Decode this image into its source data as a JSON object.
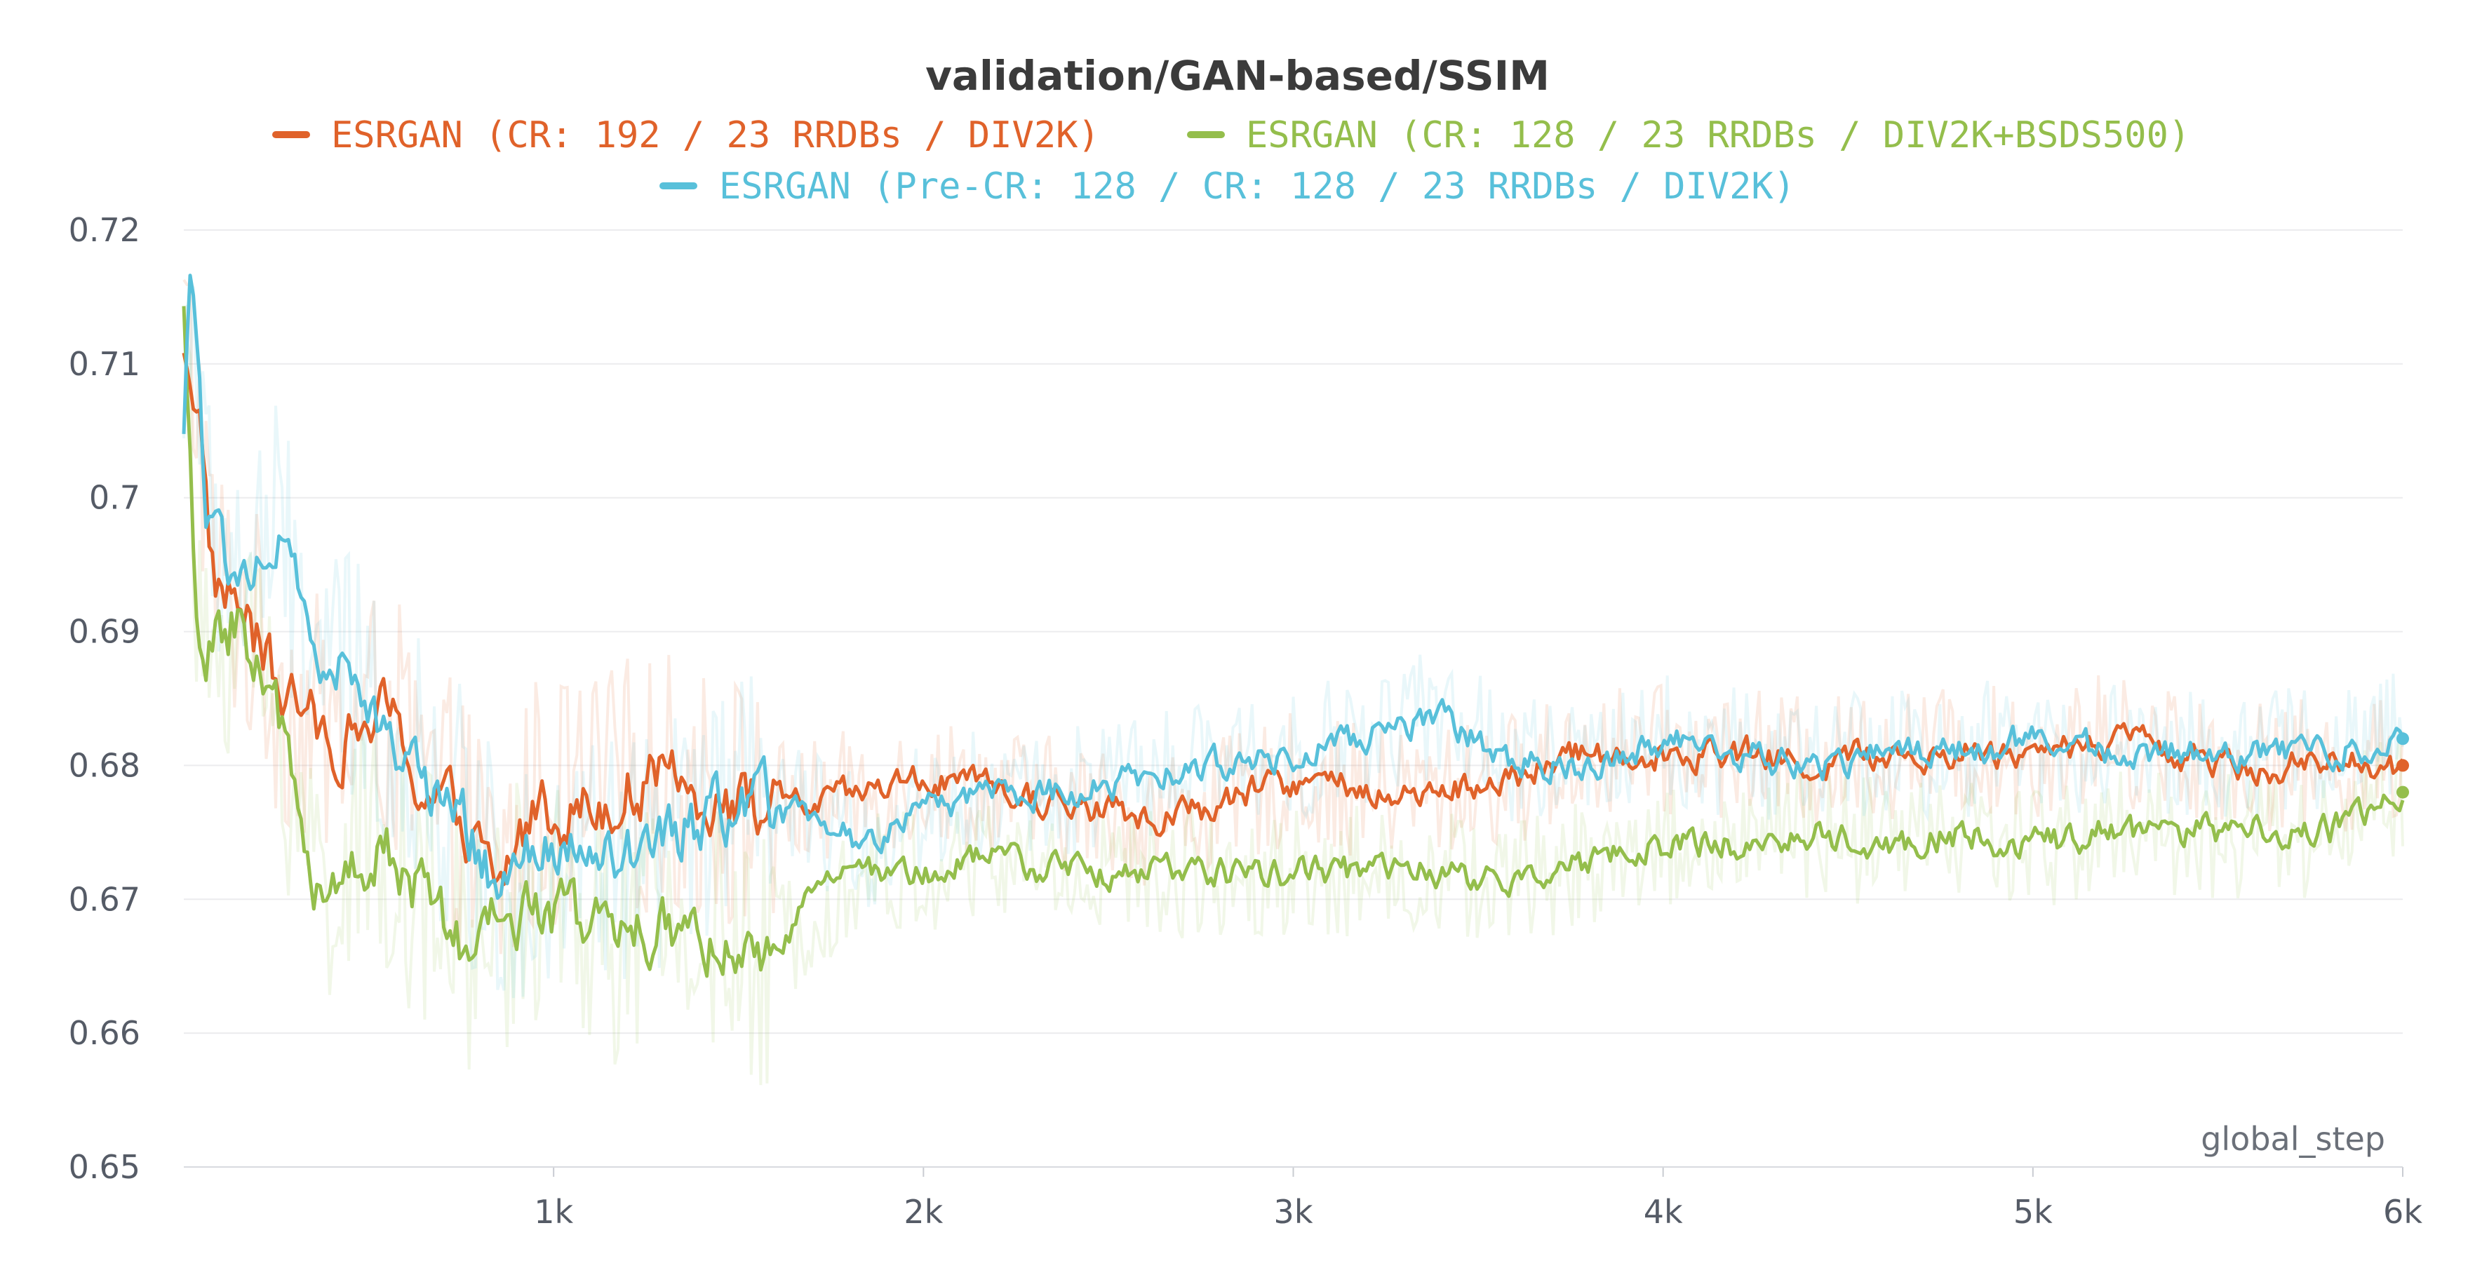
{
  "chart_data": {
    "type": "line",
    "title": "validation/GAN-based/SSIM",
    "xlabel": "global_step",
    "ylabel": "",
    "xlim": [
      0,
      6000
    ],
    "ylim": [
      0.65,
      0.72
    ],
    "x_ticks": [
      {
        "value": 1000,
        "label": "1k"
      },
      {
        "value": 2000,
        "label": "2k"
      },
      {
        "value": 3000,
        "label": "3k"
      },
      {
        "value": 4000,
        "label": "4k"
      },
      {
        "value": 5000,
        "label": "5k"
      },
      {
        "value": 6000,
        "label": "6k"
      }
    ],
    "y_ticks": [
      {
        "value": 0.72,
        "label": "0.72"
      },
      {
        "value": 0.71,
        "label": "0.71"
      },
      {
        "value": 0.7,
        "label": "0.7"
      },
      {
        "value": 0.69,
        "label": "0.69"
      },
      {
        "value": 0.68,
        "label": "0.68"
      },
      {
        "value": 0.67,
        "label": "0.67"
      },
      {
        "value": 0.66,
        "label": "0.66"
      },
      {
        "value": 0.65,
        "label": "0.65"
      }
    ],
    "grid": true,
    "legend_position": "top-center",
    "series": [
      {
        "name": "ESRGAN (CR: 192 / 23 RRDBs / DIV2K)",
        "color": "#e0622a",
        "x": [
          0,
          40,
          80,
          150,
          250,
          350,
          450,
          550,
          650,
          750,
          850,
          950,
          1100,
          1250,
          1400,
          1550,
          1700,
          1850,
          2000,
          2200,
          2400,
          2600,
          2800,
          3000,
          3200,
          3400,
          3600,
          3800,
          4000,
          4200,
          4400,
          4600,
          4800,
          5000,
          5200,
          5400,
          5600,
          5800,
          6000
        ],
        "y": [
          0.712,
          0.707,
          0.694,
          0.692,
          0.686,
          0.683,
          0.682,
          0.684,
          0.678,
          0.676,
          0.671,
          0.677,
          0.677,
          0.679,
          0.678,
          0.677,
          0.677,
          0.678,
          0.679,
          0.678,
          0.677,
          0.676,
          0.677,
          0.679,
          0.678,
          0.678,
          0.679,
          0.681,
          0.681,
          0.681,
          0.68,
          0.681,
          0.681,
          0.681,
          0.682,
          0.681,
          0.68,
          0.68,
          0.68
        ]
      },
      {
        "name": "ESRGAN (CR: 128 / 23 RRDBs / DIV2K+BSDS500)",
        "color": "#94be4c",
        "x": [
          0,
          40,
          80,
          150,
          250,
          350,
          450,
          550,
          650,
          750,
          850,
          950,
          1100,
          1250,
          1400,
          1550,
          1700,
          1850,
          2000,
          2200,
          2400,
          2600,
          2800,
          3000,
          3200,
          3400,
          3600,
          3800,
          4000,
          4200,
          4400,
          4600,
          4800,
          5000,
          5200,
          5400,
          5600,
          5800,
          6000
        ],
        "y": [
          0.713,
          0.687,
          0.689,
          0.691,
          0.684,
          0.672,
          0.672,
          0.674,
          0.67,
          0.666,
          0.668,
          0.67,
          0.668,
          0.667,
          0.668,
          0.664,
          0.67,
          0.672,
          0.672,
          0.673,
          0.672,
          0.672,
          0.672,
          0.672,
          0.672,
          0.672,
          0.671,
          0.673,
          0.674,
          0.674,
          0.675,
          0.674,
          0.675,
          0.674,
          0.675,
          0.675,
          0.675,
          0.675,
          0.678
        ]
      },
      {
        "name": "ESRGAN (Pre-CR: 128 / CR: 128 / 23 RRDBs / DIV2K)",
        "color": "#58c0da",
        "x": [
          0,
          20,
          60,
          150,
          250,
          350,
          450,
          550,
          650,
          750,
          850,
          950,
          1100,
          1250,
          1400,
          1550,
          1700,
          1850,
          2000,
          2200,
          2400,
          2600,
          2800,
          3000,
          3200,
          3400,
          3600,
          3800,
          4000,
          4200,
          4400,
          4600,
          4800,
          5000,
          5200,
          5400,
          5600,
          5800,
          6000
        ],
        "y": [
          0.705,
          0.719,
          0.698,
          0.694,
          0.697,
          0.689,
          0.686,
          0.683,
          0.679,
          0.676,
          0.671,
          0.673,
          0.673,
          0.673,
          0.676,
          0.677,
          0.676,
          0.674,
          0.677,
          0.678,
          0.678,
          0.679,
          0.68,
          0.681,
          0.682,
          0.684,
          0.68,
          0.68,
          0.682,
          0.681,
          0.68,
          0.681,
          0.681,
          0.682,
          0.681,
          0.681,
          0.681,
          0.681,
          0.682
        ]
      }
    ]
  }
}
